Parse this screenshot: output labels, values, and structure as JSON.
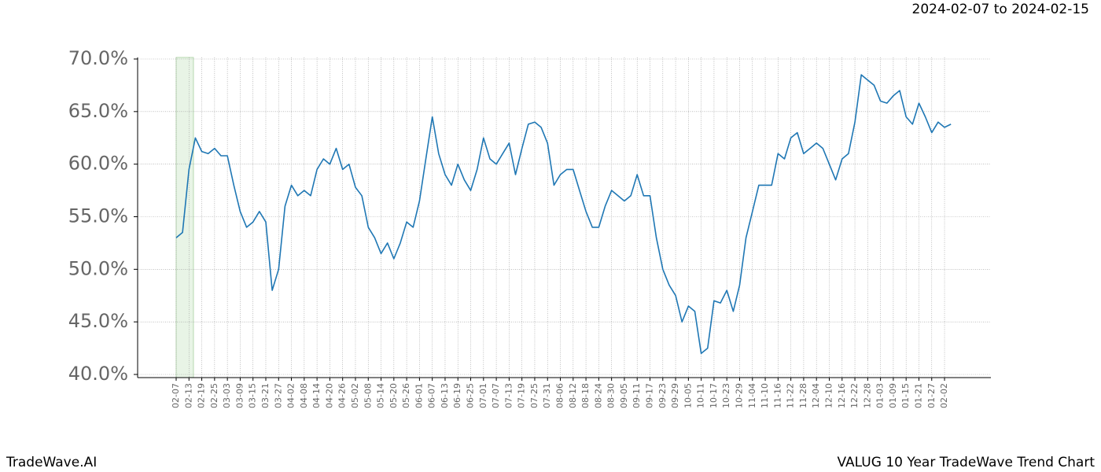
{
  "chart_data": {
    "type": "line",
    "title": "2024-02-07 to 2024-02-15",
    "footer_left": "TradeWave.AI",
    "footer_right": "VALUG 10 Year TradeWave Trend Chart",
    "categories": [
      "02-07",
      null,
      "02-13",
      null,
      "02-19",
      null,
      "02-25",
      null,
      "03-03",
      null,
      "03-09",
      null,
      "03-15",
      null,
      "03-21",
      null,
      "03-27",
      null,
      "04-02",
      null,
      "04-08",
      null,
      "04-14",
      null,
      "04-20",
      null,
      "04-26",
      null,
      "05-02",
      null,
      "05-08",
      null,
      "05-14",
      null,
      "05-20",
      null,
      "05-26",
      null,
      "06-01",
      null,
      "06-07",
      null,
      "06-13",
      null,
      "06-19",
      null,
      "06-25",
      null,
      "07-01",
      null,
      "07-07",
      null,
      "07-13",
      null,
      "07-19",
      null,
      "07-25",
      null,
      "07-31",
      null,
      "08-06",
      null,
      "08-12",
      null,
      "08-18",
      null,
      "08-24",
      null,
      "08-30",
      null,
      "09-05",
      null,
      "09-11",
      null,
      "09-17",
      null,
      "09-23",
      null,
      "09-29",
      null,
      "10-05",
      null,
      "10-11",
      null,
      "10-17",
      null,
      "10-23",
      null,
      "10-29",
      null,
      "11-04",
      null,
      "11-10",
      null,
      "11-16",
      null,
      "11-22",
      null,
      "11-28",
      null,
      "12-04",
      null,
      "12-10",
      null,
      "12-16",
      null,
      "12-22",
      null,
      "12-28",
      null,
      "01-03",
      null,
      "01-09",
      null,
      "01-15",
      null,
      "01-21",
      null,
      "01-27",
      null,
      "02-02",
      null
    ],
    "series": [
      {
        "name": "VALUG",
        "color": "#1f77b4",
        "values": [
          53.0,
          53.5,
          59.5,
          62.5,
          61.2,
          61.0,
          61.5,
          60.8,
          60.8,
          58.0,
          55.5,
          54.0,
          54.5,
          55.5,
          54.5,
          48.0,
          50.0,
          56.0,
          58.0,
          57.0,
          57.5,
          57.0,
          59.5,
          60.5,
          60.0,
          61.5,
          59.5,
          60.0,
          57.8,
          57.0,
          54.0,
          53.0,
          51.5,
          52.5,
          51.0,
          52.5,
          54.5,
          54.0,
          56.5,
          60.5,
          64.5,
          61.0,
          59.0,
          58.0,
          60.0,
          58.5,
          57.5,
          59.5,
          62.5,
          60.5,
          60.0,
          61.0,
          62.0,
          59.0,
          61.5,
          63.8,
          64.0,
          63.5,
          62.0,
          58.0,
          59.0,
          59.5,
          59.5,
          57.5,
          55.5,
          54.0,
          54.0,
          56.0,
          57.5,
          57.0,
          56.5,
          57.0,
          59.0,
          57.0,
          57.0,
          53.0,
          50.0,
          48.5,
          47.5,
          45.0,
          46.5,
          46.0,
          42.0,
          42.5,
          47.0,
          46.8,
          48.0,
          46.0,
          48.5,
          53.0,
          55.5,
          58.0,
          58.0,
          58.0,
          61.0,
          60.5,
          62.5,
          63.0,
          61.0,
          61.5,
          62.0,
          61.5,
          60.0,
          58.5,
          60.5,
          61.0,
          64.0,
          68.5,
          68.0,
          67.5,
          66.0,
          65.8,
          66.5,
          67.0,
          64.5,
          63.8,
          65.8,
          64.5,
          63.0,
          64.0,
          63.5,
          63.8
        ]
      }
    ],
    "ylim": [
      39.7,
      70.3
    ],
    "yticks": [
      {
        "value": 40,
        "label": "40.0%"
      },
      {
        "value": 45,
        "label": "45.0%"
      },
      {
        "value": 50,
        "label": "50.0%"
      },
      {
        "value": 55,
        "label": "55.0%"
      },
      {
        "value": 60,
        "label": "60.0%"
      },
      {
        "value": 65,
        "label": "65.0%"
      },
      {
        "value": 70,
        "label": "70.0%"
      }
    ],
    "grid": true
  }
}
